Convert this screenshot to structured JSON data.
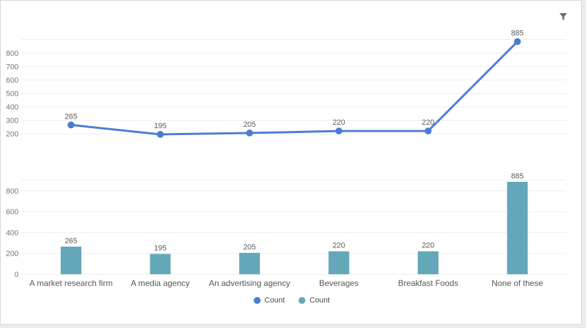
{
  "panel": {
    "page_background": "#ececec",
    "card_background": "#ffffff",
    "card_border_color": "#d6d6d6"
  },
  "toolbar": {
    "filter_icon": "funnel-filter",
    "filter_icon_color": "#6b6b6b"
  },
  "axis": {
    "gridline_color": "#ededed",
    "tick_color": "#767676",
    "value_label_color": "#595959",
    "category_label_color": "#555555"
  },
  "chart_data": [
    {
      "type": "line",
      "title": "",
      "categories": [
        "A market research firm",
        "A media agency",
        "An advertising agency",
        "Beverages",
        "Breakfast Foods",
        "None of these"
      ],
      "series": [
        {
          "name": "Count",
          "values": [
            265,
            195,
            205,
            220,
            220,
            885
          ]
        }
      ],
      "color": "#4a7cd6",
      "data_labels": [
        265,
        195,
        205,
        220,
        220,
        885
      ],
      "y_ticks": [
        200,
        300,
        400,
        500,
        600,
        700,
        800
      ],
      "gridlines": [
        200,
        300,
        400,
        500,
        600,
        700,
        800,
        900
      ],
      "ylim": [
        150,
        950
      ],
      "grid": "on",
      "legend_position": "bottom"
    },
    {
      "type": "bar",
      "title": "",
      "categories": [
        "A market research firm",
        "A media agency",
        "An advertising agency",
        "Beverages",
        "Breakfast Foods",
        "None of these"
      ],
      "series": [
        {
          "name": "Count",
          "values": [
            265,
            195,
            205,
            220,
            220,
            885
          ]
        }
      ],
      "color": "#63a8b8",
      "data_labels": [
        265,
        195,
        205,
        220,
        220,
        885
      ],
      "y_ticks": [
        0,
        200,
        400,
        600,
        800
      ],
      "gridlines": [
        0,
        200,
        400,
        600,
        800,
        900
      ],
      "ylim": [
        0,
        900
      ],
      "grid": "on",
      "legend_position": "bottom"
    }
  ],
  "legend": {
    "items": [
      {
        "label": "Count",
        "color": "#4a7cd6",
        "marker": "circle"
      },
      {
        "label": "Count",
        "color": "#63a8b8",
        "marker": "circle"
      }
    ]
  }
}
